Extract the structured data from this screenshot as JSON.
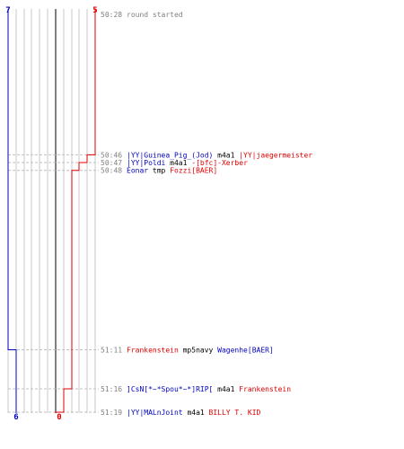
{
  "chart_data": {
    "type": "line",
    "title": "",
    "xlabel": "",
    "ylabel": "",
    "grid": true,
    "team_a": {
      "color": "#0000c0",
      "start_count": "7",
      "end_count": "6"
    },
    "team_b": {
      "color": "#e00000",
      "start_count": "5",
      "end_count": "0"
    },
    "events": [
      {
        "time": "50:28",
        "parts": [
          {
            "text": "round started",
            "team": "none"
          }
        ],
        "team_a": 7,
        "team_b": 5
      },
      {
        "time": "50:46",
        "parts": [
          {
            "text": "|YY|Guinea_Pig_(Jod)",
            "team": "a"
          },
          {
            "text": " m4a1 ",
            "team": "none"
          },
          {
            "text": "|YY|jaegermeister",
            "team": "b"
          }
        ],
        "team_a": 7,
        "team_b": 4
      },
      {
        "time": "50:47",
        "parts": [
          {
            "text": "|YY|Poldi",
            "team": "a"
          },
          {
            "text": " m4a1 ",
            "team": "none"
          },
          {
            "text": "-[bfc]-Xerber",
            "team": "b"
          }
        ],
        "team_a": 7,
        "team_b": 3
      },
      {
        "time": "50:48",
        "parts": [
          {
            "text": "Eonar",
            "team": "a"
          },
          {
            "text": " tmp ",
            "team": "none"
          },
          {
            "text": "Fozzi[BAER]",
            "team": "b"
          }
        ],
        "team_a": 7,
        "team_b": 2
      },
      {
        "time": "51:11",
        "parts": [
          {
            "text": "Frankenstein",
            "team": "b"
          },
          {
            "text": " mp5navy ",
            "team": "none"
          },
          {
            "text": "Wagenhe[BAER]",
            "team": "a"
          }
        ],
        "team_a": 6,
        "team_b": 2
      },
      {
        "time": "51:16",
        "parts": [
          {
            "text": "]CsN[*~*Spou*~*]RIP[",
            "team": "a"
          },
          {
            "text": " m4a1 ",
            "team": "none"
          },
          {
            "text": "Frankenstein",
            "team": "b"
          }
        ],
        "team_a": 6,
        "team_b": 1
      },
      {
        "time": "51:19",
        "parts": [
          {
            "text": "|YY|MALnJoint",
            "team": "a"
          },
          {
            "text": " m4a1 ",
            "team": "none"
          },
          {
            "text": "BILLY T. KID",
            "team": "b"
          }
        ],
        "team_a": 6,
        "team_b": 0
      }
    ]
  }
}
